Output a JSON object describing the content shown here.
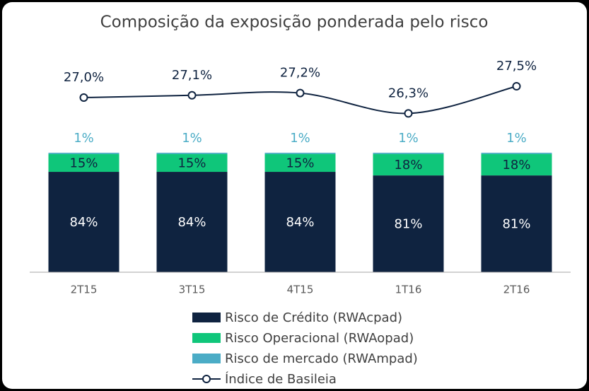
{
  "chart_data": {
    "type": "bar",
    "stacked": true,
    "title": "Composição da exposição ponderada pelo risco",
    "categories": [
      "2T15",
      "3T15",
      "4T15",
      "1T16",
      "2T16"
    ],
    "ylim": [
      0,
      100
    ],
    "y2lim": [
      25,
      28
    ],
    "series": [
      {
        "name": "Risco de Crédito (RWAcpad)",
        "type": "bar",
        "color": "#0f2340",
        "label_color": "#ffffff",
        "values": [
          84,
          84,
          84,
          81,
          81
        ],
        "value_labels": [
          "84%",
          "84%",
          "84%",
          "81%",
          "81%"
        ]
      },
      {
        "name": "Risco Operacional (RWAopad)",
        "type": "bar",
        "color": "#0fc67a",
        "label_color": "#0f2340",
        "values": [
          15,
          15,
          15,
          18,
          18
        ],
        "value_labels": [
          "15%",
          "15%",
          "15%",
          "18%",
          "18%"
        ]
      },
      {
        "name": "Risco de mercado (RWAmpad)",
        "type": "bar",
        "color": "#4bacc6",
        "label_color": "#4bacc6",
        "values": [
          1,
          1,
          1,
          1,
          1
        ],
        "value_labels": [
          "1%",
          "1%",
          "1%",
          "1%",
          "1%"
        ]
      },
      {
        "name": "Índice de Basileia",
        "type": "line",
        "axis": "y2",
        "color": "#0f2340",
        "label_color": "#0f2340",
        "values": [
          27.0,
          27.1,
          27.2,
          26.3,
          27.5
        ],
        "value_labels": [
          "27,0%",
          "27,1%",
          "27,2%",
          "26,3%",
          "27,5%"
        ]
      }
    ]
  }
}
